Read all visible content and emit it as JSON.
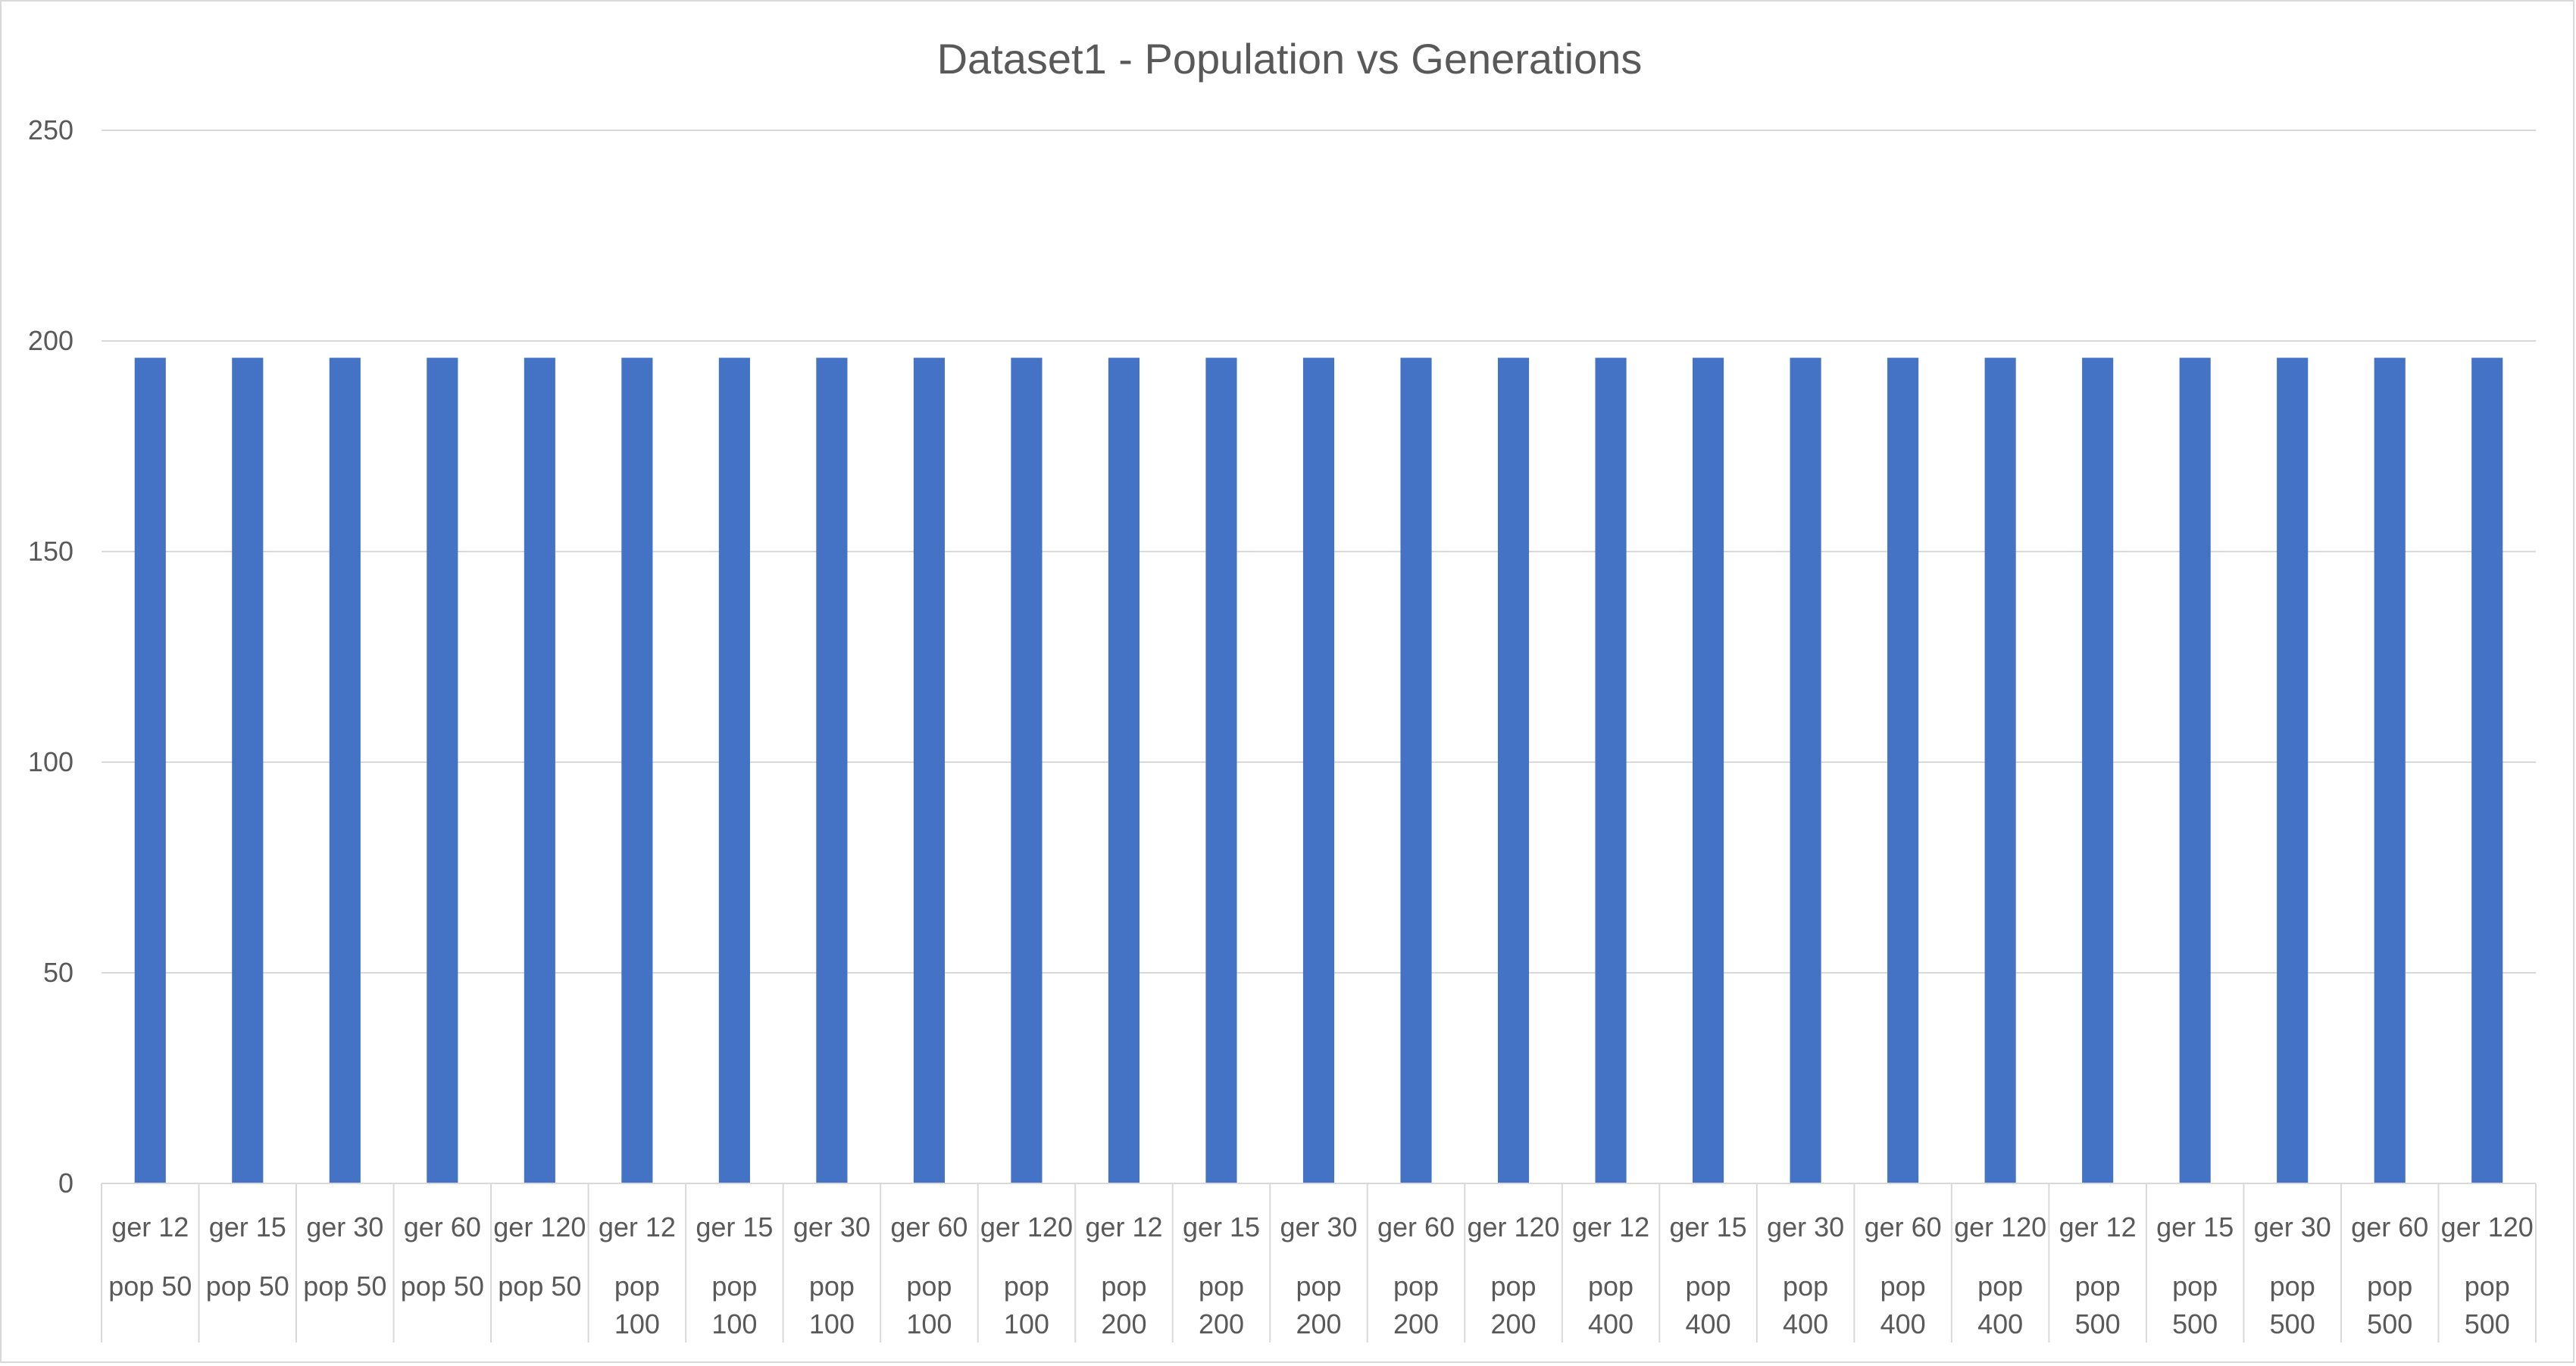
{
  "chart_data": {
    "type": "bar",
    "title": "Dataset1 - Population vs Generations",
    "xlabel": "",
    "ylabel": "",
    "ylim": [
      0,
      250
    ],
    "yticks": [
      0,
      50,
      100,
      150,
      200,
      250
    ],
    "grid": true,
    "legend": "none",
    "bar_color": "#4472c4",
    "gridline_color": "#d9d9d9",
    "categories": [
      {
        "inner": "ger 12",
        "outer": "pop 50"
      },
      {
        "inner": "ger 15",
        "outer": "pop 50"
      },
      {
        "inner": "ger 30",
        "outer": "pop 50"
      },
      {
        "inner": "ger 60",
        "outer": "pop 50"
      },
      {
        "inner": "ger 120",
        "outer": "pop 50"
      },
      {
        "inner": "ger 12",
        "outer": "pop 100"
      },
      {
        "inner": "ger 15",
        "outer": "pop 100"
      },
      {
        "inner": "ger 30",
        "outer": "pop 100"
      },
      {
        "inner": "ger 60",
        "outer": "pop 100"
      },
      {
        "inner": "ger 120",
        "outer": "pop 100"
      },
      {
        "inner": "ger 12",
        "outer": "pop 200"
      },
      {
        "inner": "ger 15",
        "outer": "pop 200"
      },
      {
        "inner": "ger 30",
        "outer": "pop 200"
      },
      {
        "inner": "ger 60",
        "outer": "pop 200"
      },
      {
        "inner": "ger 120",
        "outer": "pop 200"
      },
      {
        "inner": "ger 12",
        "outer": "pop 400"
      },
      {
        "inner": "ger 15",
        "outer": "pop 400"
      },
      {
        "inner": "ger 30",
        "outer": "pop 400"
      },
      {
        "inner": "ger 60",
        "outer": "pop 400"
      },
      {
        "inner": "ger 120",
        "outer": "pop 400"
      },
      {
        "inner": "ger 12",
        "outer": "pop 500"
      },
      {
        "inner": "ger 15",
        "outer": "pop 500"
      },
      {
        "inner": "ger 30",
        "outer": "pop 500"
      },
      {
        "inner": "ger 60",
        "outer": "pop 500"
      },
      {
        "inner": "ger 120",
        "outer": "pop 500"
      }
    ],
    "values": [
      196,
      196,
      196,
      196,
      196,
      196,
      196,
      196,
      196,
      196,
      196,
      196,
      196,
      196,
      196,
      196,
      196,
      196,
      196,
      196,
      196,
      196,
      196,
      196,
      196
    ]
  }
}
